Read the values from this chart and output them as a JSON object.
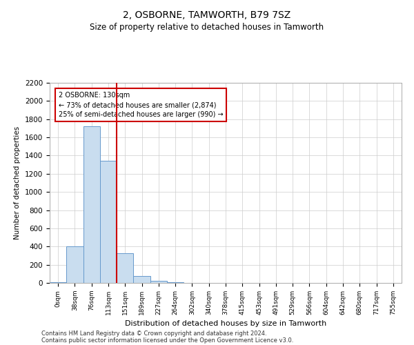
{
  "title": "2, OSBORNE, TAMWORTH, B79 7SZ",
  "subtitle": "Size of property relative to detached houses in Tamworth",
  "xlabel": "Distribution of detached houses by size in Tamworth",
  "ylabel": "Number of detached properties",
  "bar_color": "#c9ddef",
  "bar_edge_color": "#6699cc",
  "grid_color": "#cccccc",
  "background_color": "#ffffff",
  "annotation_box_color": "#cc0000",
  "vline_color": "#cc0000",
  "categories": [
    "0sqm",
    "38sqm",
    "76sqm",
    "113sqm",
    "151sqm",
    "189sqm",
    "227sqm",
    "264sqm",
    "302sqm",
    "340sqm",
    "378sqm",
    "415sqm",
    "453sqm",
    "491sqm",
    "529sqm",
    "566sqm",
    "604sqm",
    "642sqm",
    "680sqm",
    "717sqm",
    "755sqm"
  ],
  "values": [
    5,
    400,
    1720,
    1340,
    330,
    75,
    25,
    10,
    0,
    0,
    0,
    0,
    0,
    0,
    0,
    0,
    0,
    0,
    0,
    0,
    0
  ],
  "ylim": [
    0,
    2200
  ],
  "yticks": [
    0,
    200,
    400,
    600,
    800,
    1000,
    1200,
    1400,
    1600,
    1800,
    2000,
    2200
  ],
  "property_label": "2 OSBORNE: 130sqm",
  "annotation_line1": "← 73% of detached houses are smaller (2,874)",
  "annotation_line2": "25% of semi-detached houses are larger (990) →",
  "footer_line1": "Contains HM Land Registry data © Crown copyright and database right 2024.",
  "footer_line2": "Contains public sector information licensed under the Open Government Licence v3.0."
}
